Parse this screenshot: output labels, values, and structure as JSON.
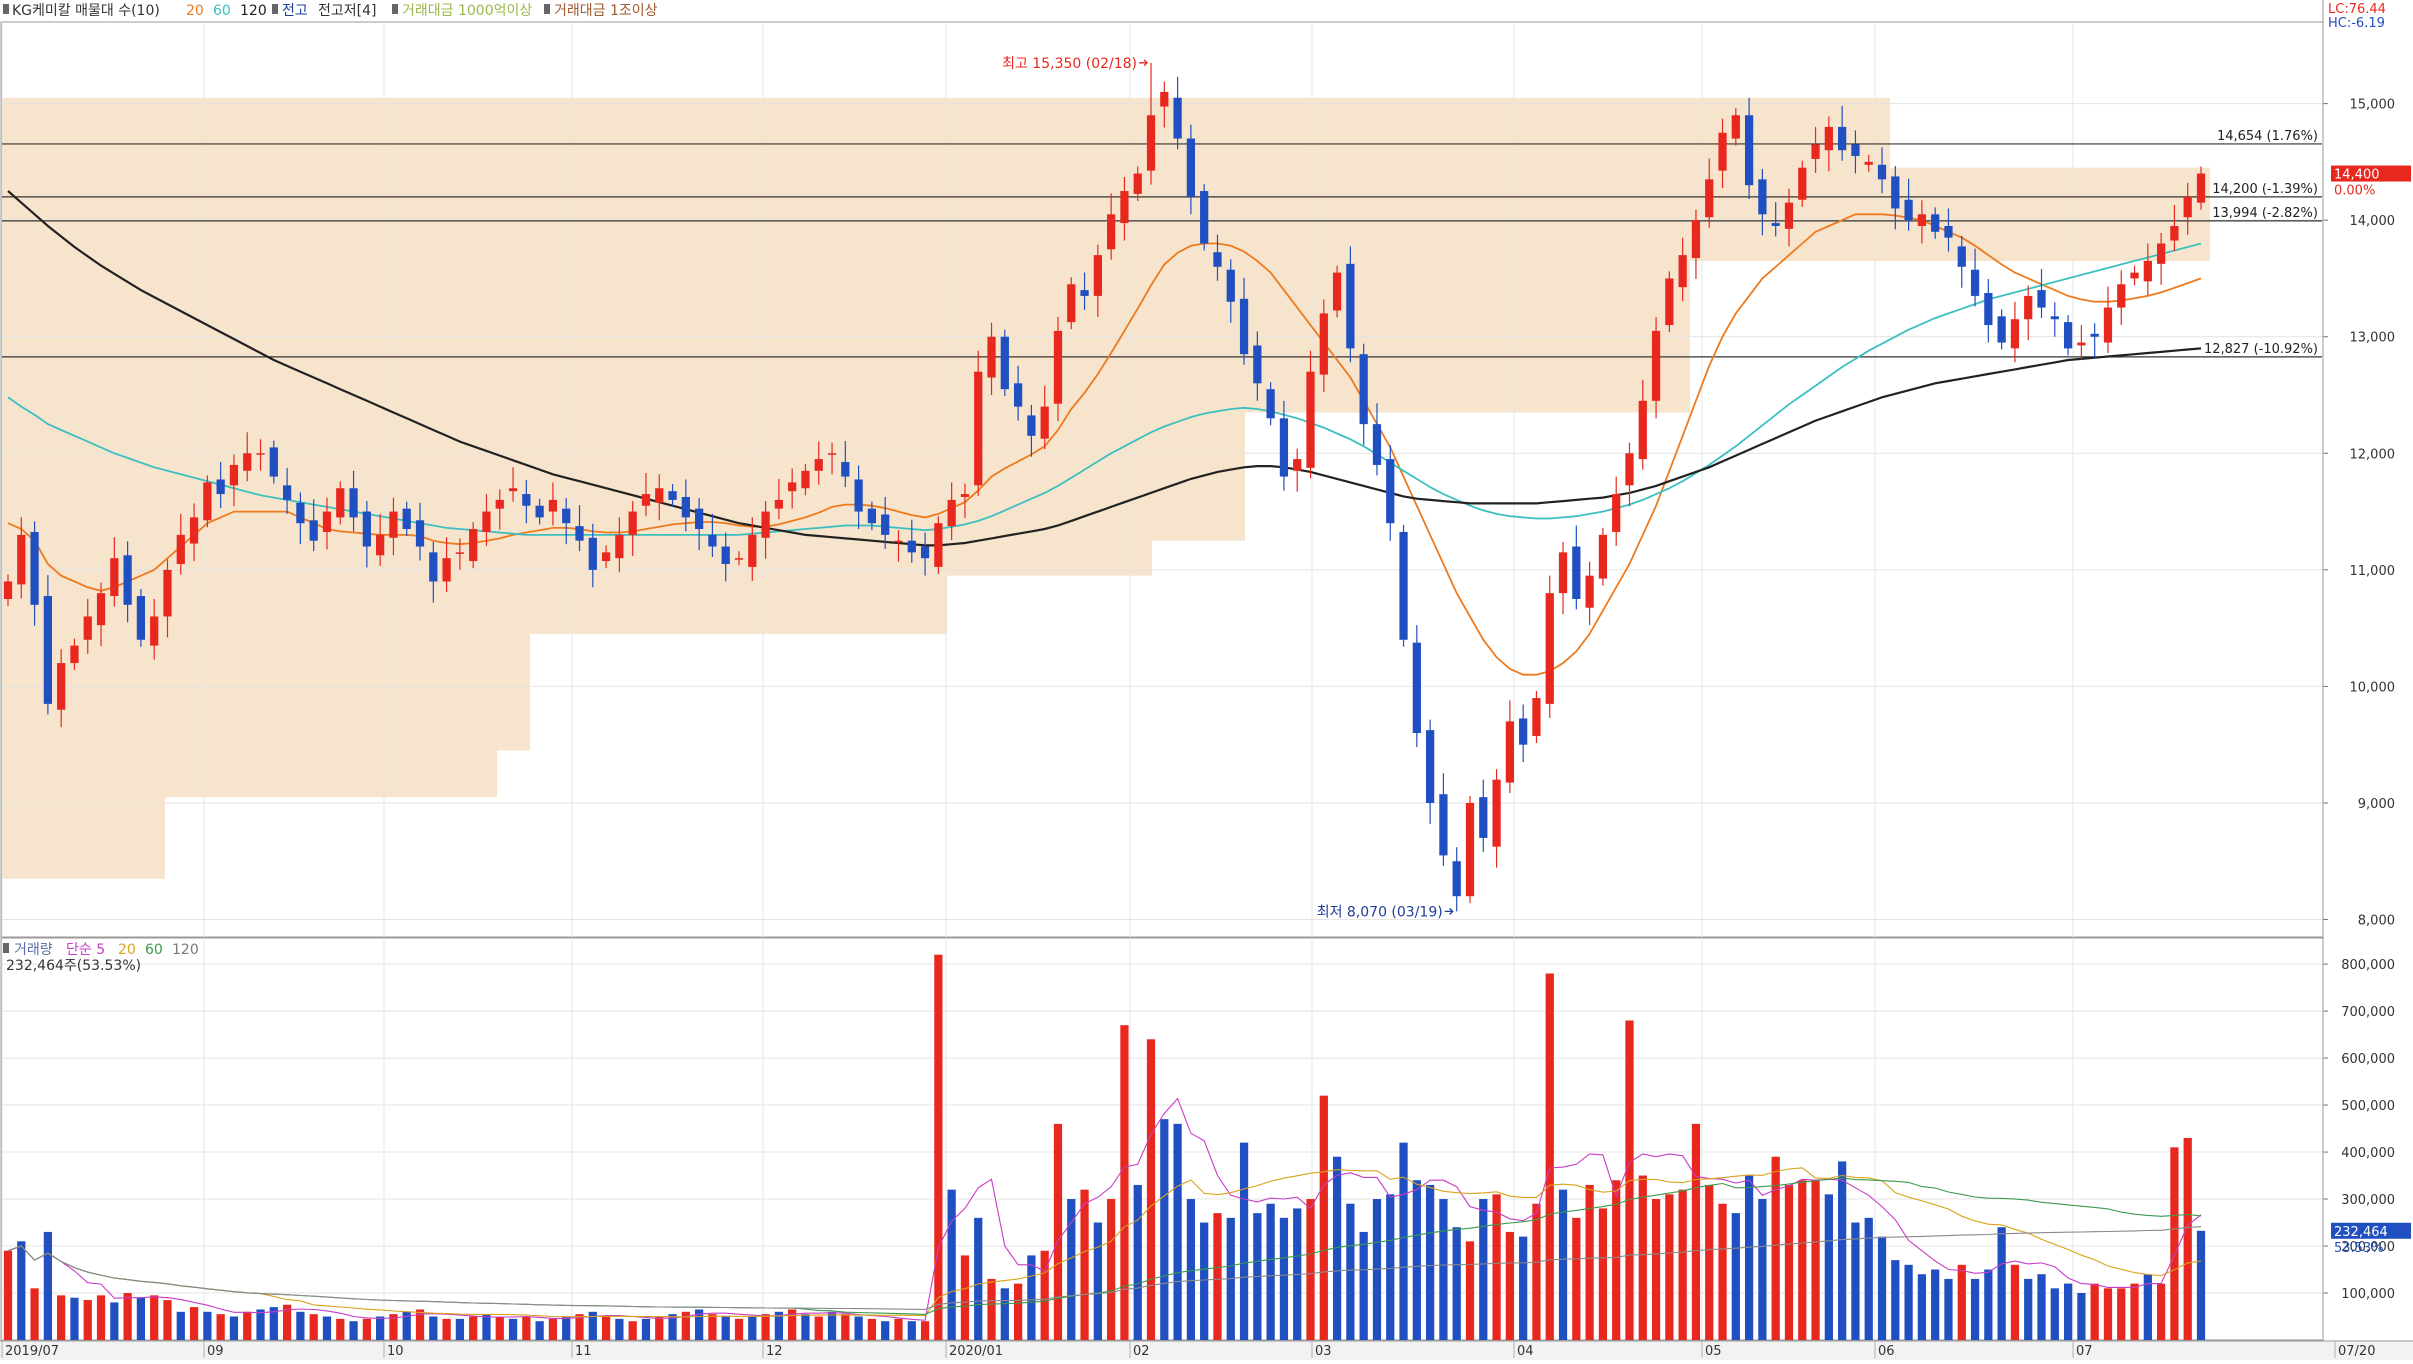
{
  "price_header": {
    "title": "KG케미칼 매물대 수(10)",
    "ma_20": "20",
    "ma_60": "60",
    "ma_120": "120",
    "high_low_label": "전고",
    "prev_high_low_label": "전고저[4]",
    "vol_amount_1": "거래대금 1000억이상",
    "vol_amount_2": "거래대금 1조이상"
  },
  "top_right": {
    "lc": "LC:76.44",
    "hc": "HC:-6.19"
  },
  "annotations": {
    "high": "최고 15,350 (02/18)",
    "low": "최저 8,070 (03/19)"
  },
  "level_lines": [
    {
      "value": 14654,
      "label": "14,654 (1.76%)"
    },
    {
      "value": 14200,
      "label": "14,200 (-1.39%)"
    },
    {
      "value": 13994,
      "label": "13,994 (-2.82%)"
    },
    {
      "value": 12827,
      "label": "12,827 (-10.92%)"
    }
  ],
  "current_price": {
    "value": 14400,
    "label": "14,400",
    "pct": "0.00%"
  },
  "price_axis": {
    "ticks": [
      "15,000",
      "14,000",
      "13,000",
      "12,000",
      "11,000",
      "10,000",
      "9,000",
      "8,000"
    ],
    "tick_values": [
      15000,
      14000,
      13000,
      12000,
      11000,
      10000,
      9000,
      8000
    ],
    "range": [
      7850,
      15700
    ]
  },
  "volume_header": {
    "title": "거래량",
    "ma_label": "단순 5",
    "ma_20": "20",
    "ma_60": "60",
    "ma_120": "120",
    "last_info": "232,464주(53.53%)"
  },
  "volume_axis": {
    "ticks": [
      "800,000",
      "700,000",
      "600,000",
      "500,000",
      "400,000",
      "300,000",
      "200,000",
      "100,000"
    ],
    "tick_values": [
      800000,
      700000,
      600000,
      500000,
      400000,
      300000,
      200000,
      100000
    ],
    "range": [
      0,
      830000
    ]
  },
  "volume_current": {
    "value": 232464,
    "label": "232,464",
    "pct": "53.53%"
  },
  "x_axis": {
    "labels": [
      "2019/07",
      "09",
      "10",
      "11",
      "12",
      "2020/01",
      "02",
      "03",
      "04",
      "05",
      "06",
      "07",
      "07/20"
    ]
  },
  "colors": {
    "up": "#e8281e",
    "down": "#1f4fc1",
    "ma20": "#ee7a1e",
    "ma60": "#3cbfc0",
    "ma120": "#222222",
    "volume_profile": "#f7e4cc",
    "grid": "#e4e4e4"
  },
  "chart_data": {
    "type": "candlestick",
    "period": "2019/07 - 2020/07/20",
    "price_range": [
      7850,
      15700
    ],
    "high": {
      "value": 15350,
      "date": "02/18"
    },
    "low": {
      "value": 8070,
      "date": "03/19"
    },
    "close_last": 14400,
    "close_series": [
      10900,
      11300,
      10700,
      9850,
      10200,
      10350,
      10600,
      10800,
      11100,
      10700,
      10400,
      10600,
      11000,
      11300,
      11450,
      11750,
      11650,
      11900,
      12000,
      12000,
      11800,
      11600,
      11400,
      11250,
      11500,
      11700,
      11450,
      11200,
      11300,
      11500,
      11350,
      11200,
      10900,
      11100,
      11150,
      11350,
      11500,
      11600,
      11700,
      11550,
      11450,
      11600,
      11400,
      11250,
      11000,
      11150,
      11300,
      11500,
      11650,
      11700,
      11600,
      11450,
      11350,
      11200,
      11050,
      11100,
      11300,
      11500,
      11600,
      11750,
      11850,
      11950,
      12000,
      11800,
      11500,
      11400,
      11300,
      11250,
      11150,
      11100,
      11400,
      11600,
      11650,
      12700,
      13000,
      12550,
      12400,
      12150,
      12400,
      13050,
      13450,
      13350,
      13700,
      14050,
      14250,
      14400,
      14900,
      15100,
      14700,
      14200,
      13800,
      13600,
      13300,
      12850,
      12600,
      12300,
      11800,
      11950,
      12700,
      13200,
      13550,
      12900,
      12250,
      11900,
      11400,
      10400,
      9600,
      9000,
      8550,
      8200,
      9000,
      8700,
      9200,
      9700,
      9500,
      9900,
      10800,
      11150,
      10750,
      10950,
      11300,
      11650,
      12000,
      12450,
      13050,
      13500,
      13700,
      14000,
      14350,
      14750,
      14900,
      14300,
      14050,
      13950,
      14150,
      14450,
      14650,
      14800,
      14600,
      14550,
      14500,
      14350,
      14100,
      14000,
      14050,
      13900,
      13850,
      13600,
      13350,
      13100,
      12950,
      13150,
      13350,
      13250,
      13150,
      12900,
      12950,
      13000,
      13250,
      13450,
      13550,
      13650,
      13800,
      13950,
      14200,
      14400
    ],
    "ma_series": [
      {
        "name": "20",
        "values": [
          11400,
          11350,
          11250,
          11050,
          10950,
          10900,
          10850,
          10820,
          10850,
          10900,
          10950,
          11000,
          11100,
          11200,
          11300,
          11400,
          11450,
          11500,
          11500,
          11500,
          11500,
          11500,
          11450,
          11400,
          11350,
          11330,
          11320,
          11310,
          11300,
          11300,
          11300,
          11290,
          11250,
          11230,
          11220,
          11230,
          11250,
          11270,
          11300,
          11320,
          11340,
          11360,
          11360,
          11350,
          11330,
          11320,
          11320,
          11330,
          11350,
          11370,
          11390,
          11400,
          11410,
          11410,
          11400,
          11380,
          11370,
          11370,
          11390,
          11420,
          11450,
          11490,
          11540,
          11560,
          11560,
          11550,
          11530,
          11500,
          11470,
          11450,
          11480,
          11530,
          11580,
          11680,
          11800,
          11870,
          11930,
          11990,
          12060,
          12200,
          12380,
          12520,
          12680,
          12860,
          13050,
          13240,
          13440,
          13620,
          13720,
          13780,
          13800,
          13800,
          13780,
          13730,
          13650,
          13550,
          13400,
          13250,
          13100,
          12950,
          12800,
          12650,
          12450,
          12250,
          12050,
          11800,
          11550,
          11300,
          11050,
          10800,
          10600,
          10400,
          10250,
          10150,
          10100,
          10100,
          10130,
          10200,
          10300,
          10450,
          10650,
          10850,
          11050,
          11300,
          11550,
          11850,
          12150,
          12450,
          12750,
          13000,
          13200,
          13350,
          13500,
          13600,
          13700,
          13800,
          13900,
          13950,
          14000,
          14050,
          14050,
          14050,
          14040,
          14020,
          14000,
          13950,
          13900,
          13850,
          13780,
          13700,
          13620,
          13550,
          13500,
          13450,
          13400,
          13350,
          13320,
          13300,
          13300,
          13310,
          13330,
          13350,
          13380,
          13420,
          13460,
          13500
        ]
      },
      {
        "name": "60",
        "values": [
          12480,
          12400,
          12330,
          12250,
          12200,
          12150,
          12100,
          12050,
          12000,
          11960,
          11920,
          11880,
          11850,
          11820,
          11790,
          11760,
          11730,
          11700,
          11670,
          11640,
          11620,
          11600,
          11580,
          11560,
          11540,
          11520,
          11500,
          11480,
          11460,
          11440,
          11420,
          11400,
          11380,
          11360,
          11350,
          11340,
          11330,
          11320,
          11310,
          11300,
          11300,
          11300,
          11300,
          11300,
          11300,
          11300,
          11300,
          11300,
          11300,
          11300,
          11300,
          11300,
          11300,
          11300,
          11300,
          11300,
          11310,
          11320,
          11330,
          11340,
          11350,
          11360,
          11370,
          11380,
          11380,
          11380,
          11370,
          11360,
          11350,
          11340,
          11350,
          11370,
          11390,
          11420,
          11460,
          11510,
          11560,
          11610,
          11660,
          11720,
          11790,
          11860,
          11930,
          12000,
          12060,
          12120,
          12180,
          12230,
          12270,
          12310,
          12340,
          12360,
          12380,
          12390,
          12380,
          12360,
          12330,
          12300,
          12260,
          12220,
          12170,
          12120,
          12060,
          11990,
          11920,
          11850,
          11780,
          11710,
          11650,
          11600,
          11550,
          11510,
          11480,
          11460,
          11450,
          11440,
          11440,
          11450,
          11460,
          11480,
          11500,
          11530,
          11560,
          11600,
          11650,
          11700,
          11760,
          11830,
          11900,
          11980,
          12060,
          12150,
          12240,
          12330,
          12420,
          12500,
          12580,
          12660,
          12740,
          12810,
          12880,
          12940,
          13000,
          13060,
          13110,
          13160,
          13200,
          13240,
          13280,
          13320,
          13350,
          13380,
          13410,
          13440,
          13470,
          13500,
          13530,
          13560,
          13590,
          13620,
          13650,
          13680,
          13710,
          13740,
          13770,
          13800
        ]
      },
      {
        "name": "120",
        "values": [
          14250,
          14150,
          14050,
          13950,
          13860,
          13770,
          13690,
          13610,
          13540,
          13470,
          13400,
          13340,
          13280,
          13220,
          13160,
          13100,
          13040,
          12980,
          12920,
          12860,
          12800,
          12750,
          12700,
          12650,
          12600,
          12550,
          12500,
          12450,
          12400,
          12350,
          12300,
          12250,
          12200,
          12150,
          12100,
          12060,
          12020,
          11980,
          11940,
          11900,
          11860,
          11820,
          11790,
          11760,
          11730,
          11700,
          11670,
          11640,
          11610,
          11580,
          11550,
          11520,
          11490,
          11460,
          11430,
          11400,
          11380,
          11360,
          11340,
          11320,
          11300,
          11290,
          11280,
          11270,
          11260,
          11250,
          11240,
          11230,
          11220,
          11210,
          11210,
          11220,
          11230,
          11250,
          11270,
          11290,
          11310,
          11330,
          11350,
          11380,
          11420,
          11460,
          11500,
          11540,
          11580,
          11620,
          11660,
          11700,
          11740,
          11780,
          11810,
          11840,
          11860,
          11880,
          11890,
          11890,
          11880,
          11860,
          11840,
          11810,
          11780,
          11750,
          11720,
          11690,
          11660,
          11630,
          11610,
          11600,
          11590,
          11580,
          11570,
          11570,
          11570,
          11570,
          11570,
          11570,
          11580,
          11590,
          11600,
          11610,
          11620,
          11640,
          11660,
          11690,
          11720,
          11760,
          11800,
          11840,
          11880,
          11930,
          11980,
          12030,
          12080,
          12130,
          12180,
          12230,
          12280,
          12320,
          12360,
          12400,
          12440,
          12480,
          12510,
          12540,
          12570,
          12600,
          12620,
          12640,
          12660,
          12680,
          12700,
          12720,
          12740,
          12760,
          12780,
          12800,
          12810,
          12820,
          12830,
          12840,
          12850,
          12860,
          12870,
          12880,
          12890,
          12900
        ]
      }
    ],
    "volume": {
      "range": [
        0,
        830000
      ],
      "values": [
        190000,
        210000,
        110000,
        230000,
        95000,
        90000,
        85000,
        95000,
        80000,
        100000,
        90000,
        95000,
        85000,
        60000,
        70000,
        60000,
        55000,
        50000,
        60000,
        65000,
        70000,
        75000,
        60000,
        55000,
        50000,
        45000,
        40000,
        45000,
        50000,
        55000,
        60000,
        65000,
        50000,
        45000,
        45000,
        50000,
        55000,
        50000,
        45000,
        50000,
        40000,
        45000,
        50000,
        55000,
        60000,
        50000,
        45000,
        40000,
        45000,
        50000,
        55000,
        60000,
        65000,
        55000,
        50000,
        45000,
        50000,
        55000,
        60000,
        65000,
        55000,
        50000,
        60000,
        55000,
        50000,
        45000,
        40000,
        45000,
        40000,
        40000,
        820000,
        320000,
        180000,
        260000,
        130000,
        110000,
        120000,
        180000,
        190000,
        460000,
        300000,
        320000,
        250000,
        300000,
        670000,
        330000,
        640000,
        470000,
        460000,
        300000,
        250000,
        270000,
        260000,
        420000,
        270000,
        290000,
        260000,
        280000,
        300000,
        520000,
        390000,
        290000,
        230000,
        300000,
        310000,
        420000,
        340000,
        330000,
        300000,
        240000,
        210000,
        300000,
        310000,
        230000,
        220000,
        290000,
        780000,
        320000,
        260000,
        330000,
        280000,
        340000,
        680000,
        350000,
        300000,
        310000,
        320000,
        460000,
        330000,
        290000,
        270000,
        350000,
        300000,
        390000,
        330000,
        340000,
        340000,
        310000,
        380000,
        250000,
        260000,
        220000,
        170000,
        160000,
        140000,
        150000,
        130000,
        160000,
        130000,
        150000,
        240000,
        160000,
        130000,
        140000,
        110000,
        120000,
        100000,
        120000,
        110000,
        110000,
        120000,
        140000,
        120000,
        410000,
        430000,
        232464
      ],
      "direction": [
        "up",
        "down",
        "up",
        "down",
        "up",
        "down",
        "up",
        "up",
        "down",
        "up",
        "down",
        "up",
        "up",
        "down",
        "up",
        "down",
        "up",
        "down",
        "up",
        "down",
        "down",
        "up",
        "down",
        "up",
        "down",
        "up",
        "down",
        "up",
        "down",
        "up",
        "down",
        "up",
        "down",
        "up",
        "down",
        "up",
        "down",
        "up",
        "down",
        "up",
        "down",
        "up",
        "down",
        "up",
        "down",
        "up",
        "down",
        "up",
        "down",
        "up",
        "down",
        "up",
        "down",
        "up",
        "down",
        "up",
        "down",
        "up",
        "down",
        "up",
        "down",
        "up",
        "down",
        "up",
        "down",
        "up",
        "down",
        "up",
        "down",
        "up",
        "up",
        "down",
        "up",
        "down",
        "up",
        "down",
        "up",
        "down",
        "up",
        "up",
        "down",
        "up",
        "down",
        "up",
        "up",
        "down",
        "up",
        "down",
        "down",
        "down",
        "down",
        "up",
        "down",
        "down",
        "down",
        "down",
        "down",
        "down",
        "up",
        "up",
        "down",
        "down",
        "down",
        "down",
        "down",
        "down",
        "down",
        "down",
        "down",
        "down",
        "up",
        "down",
        "up",
        "up",
        "down",
        "up",
        "up",
        "down",
        "up",
        "up",
        "up",
        "up",
        "up",
        "up",
        "up",
        "up",
        "up",
        "up",
        "up",
        "up",
        "down",
        "down",
        "down",
        "up",
        "up",
        "up",
        "up",
        "down",
        "down",
        "down",
        "down",
        "down",
        "down",
        "down",
        "down",
        "down",
        "down",
        "up",
        "down",
        "down",
        "down",
        "up",
        "down",
        "down",
        "down",
        "down",
        "down",
        "up",
        "up",
        "up",
        "up",
        "down",
        "up",
        "up",
        "up",
        "down"
      ]
    }
  }
}
